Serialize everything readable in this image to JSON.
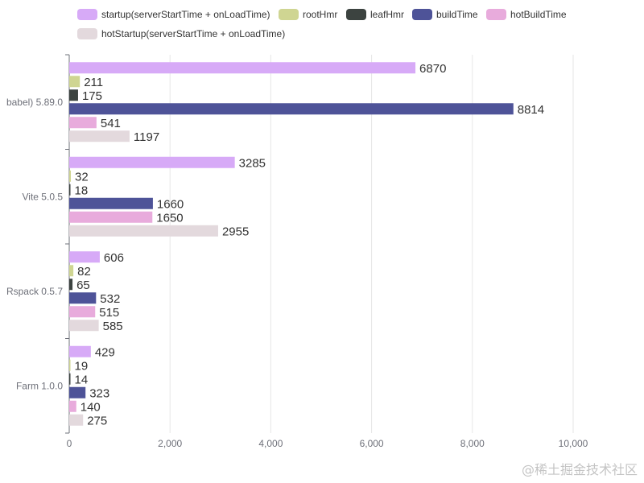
{
  "chart_data": {
    "type": "bar",
    "orientation": "horizontal",
    "categories": [
      "babel) 5.89.0",
      "Vite 5.0.5",
      "Rspack 0.5.7",
      "Farm 1.0.0"
    ],
    "series": [
      {
        "name": "startup(serverStartTime + onLoadTime)",
        "color": "#d7aaf7",
        "values": [
          6870,
          3285,
          606,
          429
        ]
      },
      {
        "name": "rootHmr",
        "color": "#cfd592",
        "values": [
          211,
          32,
          82,
          19
        ]
      },
      {
        "name": "leafHmr",
        "color": "#3c4340",
        "values": [
          175,
          18,
          65,
          14
        ]
      },
      {
        "name": "buildTime",
        "color": "#4e5398",
        "values": [
          8814,
          1660,
          532,
          323
        ]
      },
      {
        "name": "hotBuildTime",
        "color": "#e8abdc",
        "values": [
          541,
          1650,
          515,
          140
        ]
      },
      {
        "name": "hotStartup(serverStartTime + onLoadTime)",
        "color": "#e3d9dd",
        "values": [
          1197,
          2955,
          585,
          275
        ]
      }
    ],
    "xlim": [
      0,
      11000
    ],
    "xticks": [
      0,
      2000,
      4000,
      6000,
      8000,
      10000
    ],
    "xtick_labels": [
      "0",
      "2,000",
      "4,000",
      "6,000",
      "8,000",
      "10,000"
    ],
    "grid": "vertical",
    "legend": "top",
    "title": "",
    "xlabel": "",
    "ylabel": ""
  },
  "watermark": "@稀土掘金技术社区"
}
